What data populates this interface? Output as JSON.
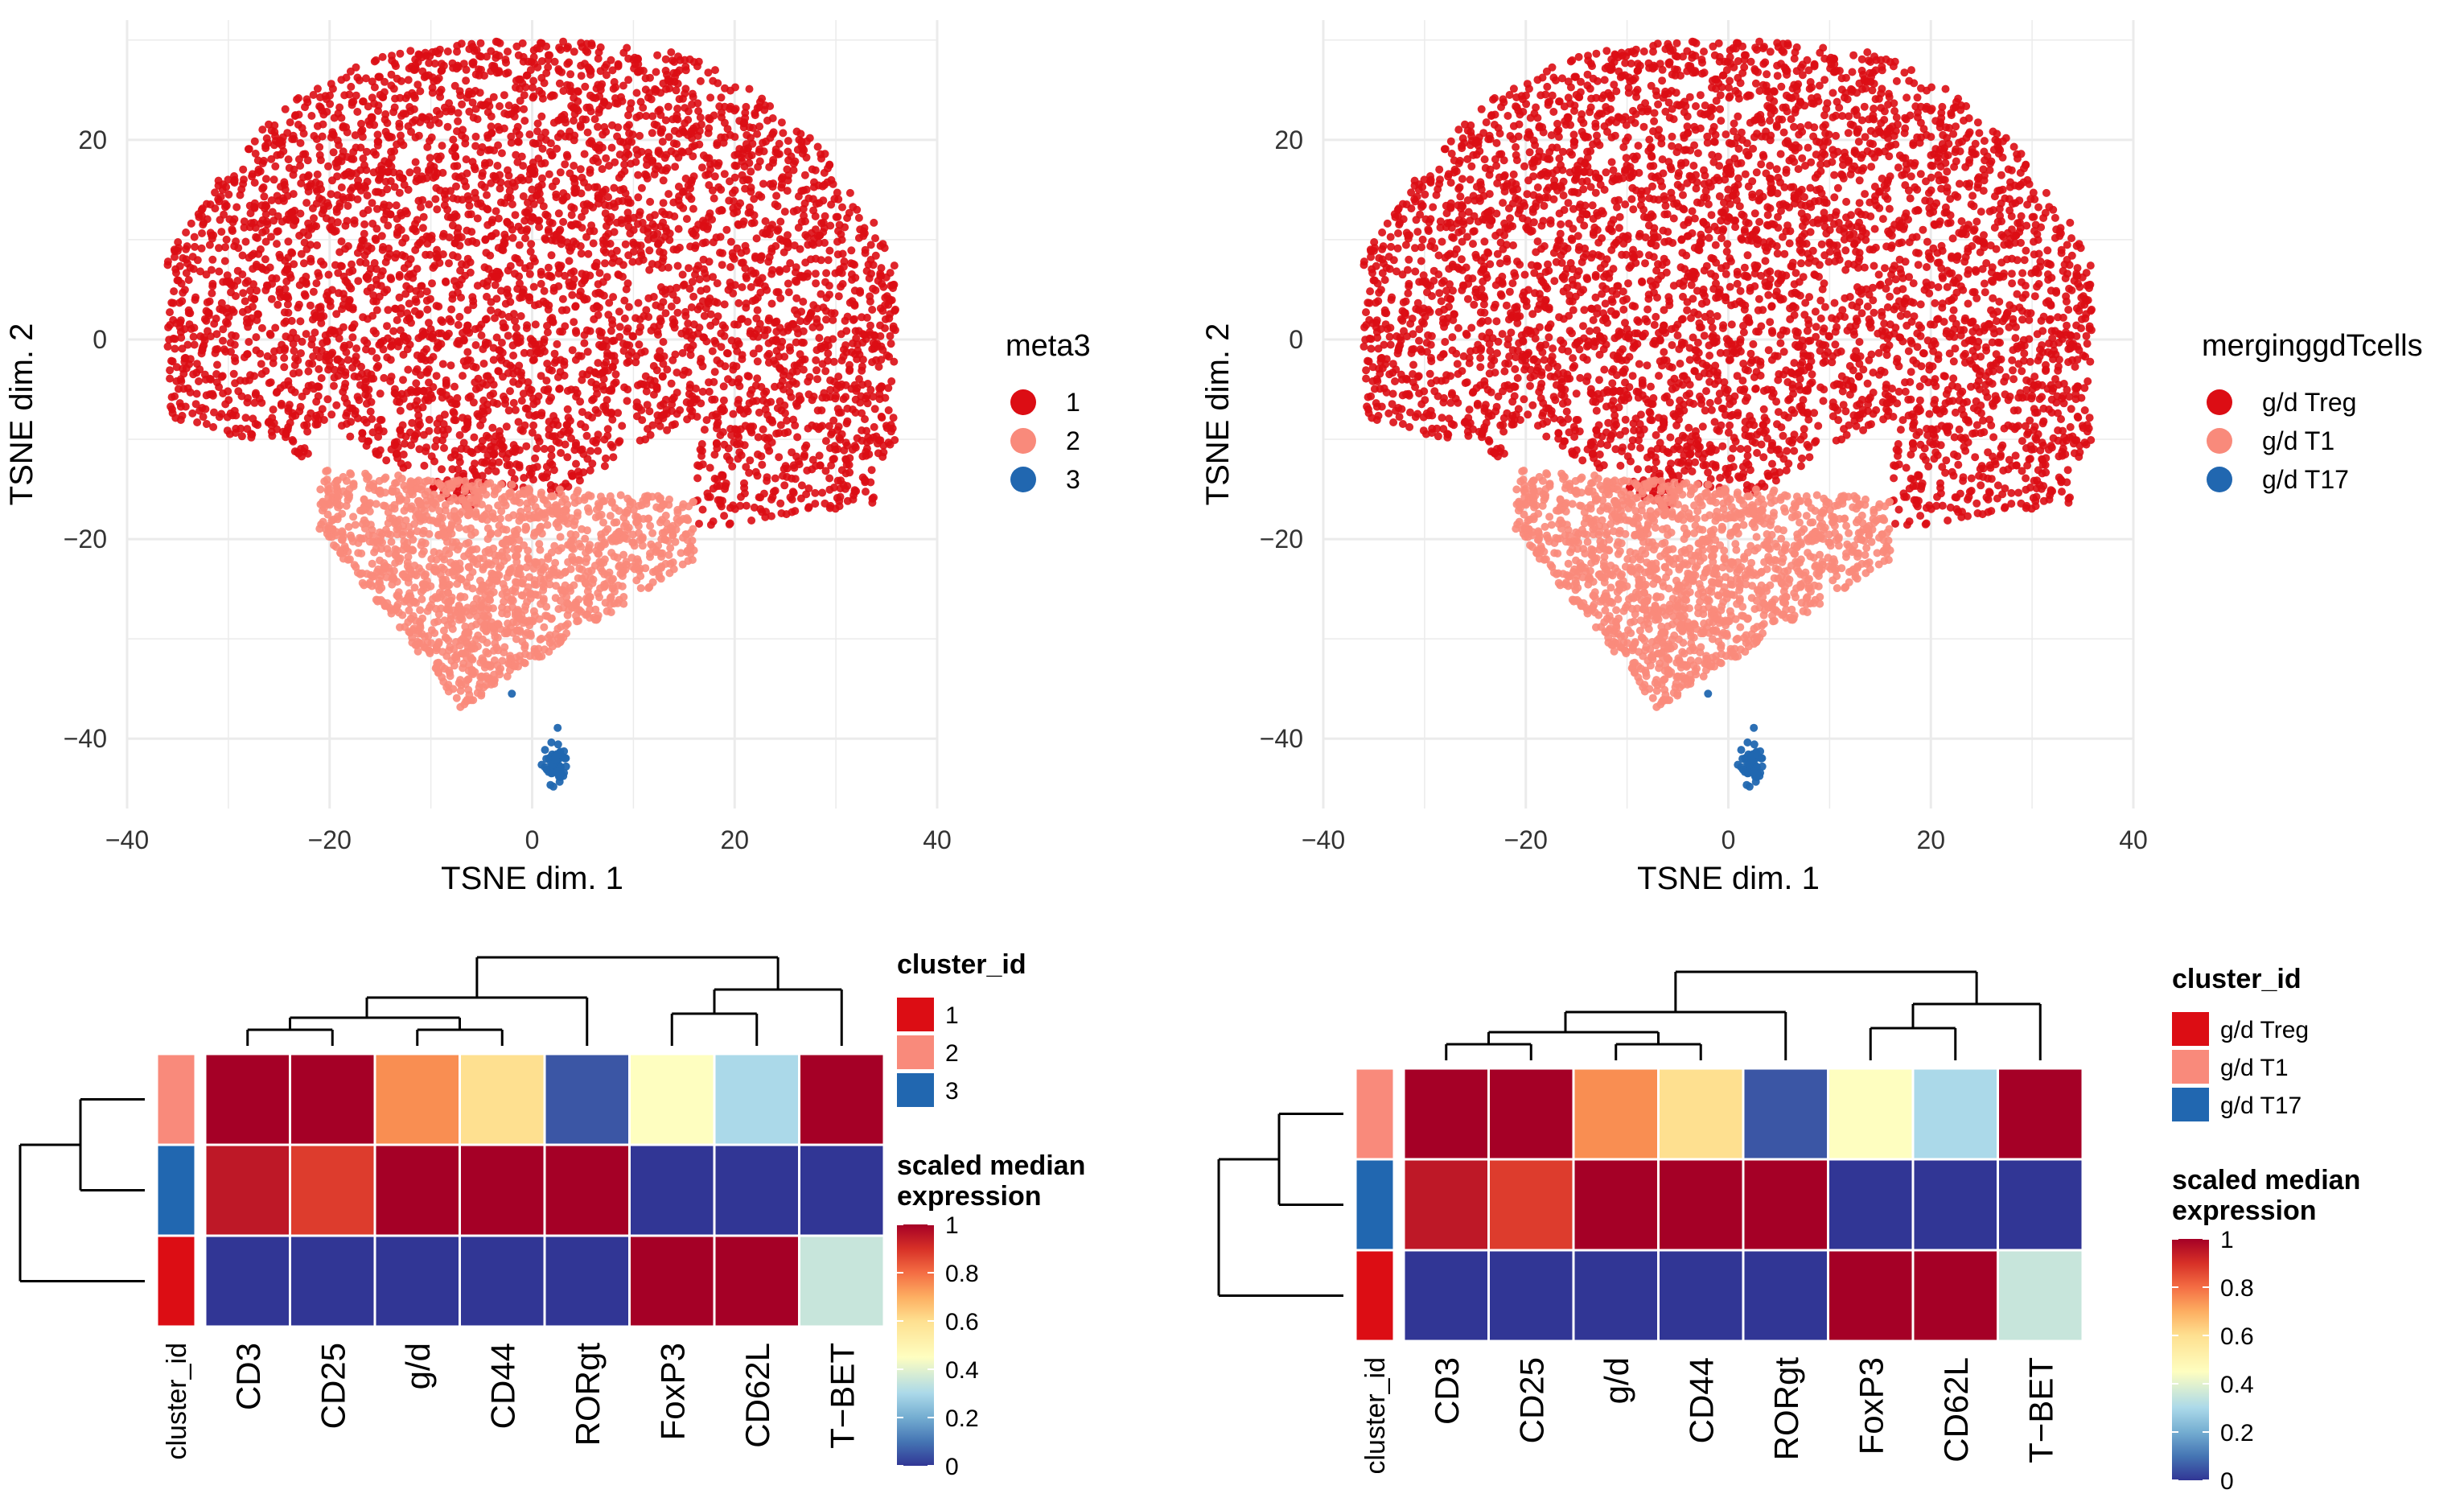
{
  "chart_data": [
    {
      "type": "scatter",
      "panel": "tsne-left",
      "xlabel": "TSNE dim. 1",
      "ylabel": "TSNE dim. 2",
      "xlim": [
        -40,
        40
      ],
      "ylim": [
        -47,
        32
      ],
      "xticks": [
        -40,
        -20,
        0,
        20,
        40
      ],
      "yticks": [
        -40,
        -20,
        0,
        20
      ],
      "xtick_labels": [
        "−40",
        "−20",
        "0",
        "20",
        "40"
      ],
      "ytick_labels": [
        "−40",
        "−20",
        "0",
        "20"
      ],
      "grid": true,
      "legend": {
        "title": "meta3",
        "position": "right",
        "entries": [
          {
            "label": "1",
            "color": "#dc0d14"
          },
          {
            "label": "2",
            "color": "#f98a7b"
          },
          {
            "label": "3",
            "color": "#2167b0"
          }
        ]
      }
    },
    {
      "type": "scatter",
      "panel": "tsne-right",
      "xlabel": "TSNE dim. 1",
      "ylabel": "TSNE dim. 2",
      "xlim": [
        -40,
        40
      ],
      "ylim": [
        -47,
        32
      ],
      "xticks": [
        -40,
        -20,
        0,
        20,
        40
      ],
      "yticks": [
        -40,
        -20,
        0,
        20
      ],
      "xtick_labels": [
        "−40",
        "−20",
        "0",
        "20",
        "40"
      ],
      "ytick_labels": [
        "−40",
        "−20",
        "0",
        "20"
      ],
      "grid": true,
      "legend": {
        "title": "merginggdTcells",
        "position": "right",
        "entries": [
          {
            "label": "g/d Treg",
            "color": "#dc0d14"
          },
          {
            "label": "g/d T1",
            "color": "#f98a7b"
          },
          {
            "label": "g/d T17",
            "color": "#2167b0"
          }
        ]
      }
    },
    {
      "type": "heatmap",
      "panel": "heatmap-left",
      "row_annotation_label": "cluster_id",
      "columns": [
        "CD3",
        "CD25",
        "g/d",
        "CD44",
        "RORgt",
        "FoxP3",
        "CD62L",
        "T−BET"
      ],
      "rows": [
        {
          "cluster": "2",
          "values": [
            1.0,
            1.0,
            0.75,
            0.6,
            0.05,
            0.45,
            0.3,
            1.0
          ]
        },
        {
          "cluster": "3",
          "values": [
            0.95,
            0.88,
            1.0,
            1.0,
            1.0,
            0.0,
            0.0,
            0.0
          ]
        },
        {
          "cluster": "1",
          "values": [
            0.0,
            0.0,
            0.0,
            0.0,
            0.0,
            1.0,
            1.0,
            0.35
          ]
        }
      ],
      "cluster_legend": {
        "title": "cluster_id",
        "entries": [
          {
            "label": "1",
            "color": "#dc0d14"
          },
          {
            "label": "2",
            "color": "#f98a7b"
          },
          {
            "label": "3",
            "color": "#2167b0"
          }
        ]
      },
      "color_legend": {
        "title_line1": "scaled median",
        "title_line2": "expression",
        "ticks": [
          "0",
          "0.2",
          "0.4",
          "0.6",
          "0.8",
          "1"
        ]
      }
    },
    {
      "type": "heatmap",
      "panel": "heatmap-right",
      "row_annotation_label": "cluster_id",
      "columns": [
        "CD3",
        "CD25",
        "g/d",
        "CD44",
        "RORgt",
        "FoxP3",
        "CD62L",
        "T−BET"
      ],
      "rows": [
        {
          "cluster": "g/d T1",
          "values": [
            1.0,
            1.0,
            0.75,
            0.6,
            0.05,
            0.45,
            0.3,
            1.0
          ]
        },
        {
          "cluster": "g/d T17",
          "values": [
            0.95,
            0.88,
            1.0,
            1.0,
            1.0,
            0.0,
            0.0,
            0.0
          ]
        },
        {
          "cluster": "g/d Treg",
          "values": [
            0.0,
            0.0,
            0.0,
            0.0,
            0.0,
            1.0,
            1.0,
            0.35
          ]
        }
      ],
      "cluster_legend": {
        "title": "cluster_id",
        "entries": [
          {
            "label": "g/d Treg",
            "color": "#dc0d14"
          },
          {
            "label": "g/d T1",
            "color": "#f98a7b"
          },
          {
            "label": "g/d T17",
            "color": "#2167b0"
          }
        ]
      },
      "color_legend": {
        "title_line1": "scaled median",
        "title_line2": "expression",
        "ticks": [
          "0",
          "0.2",
          "0.4",
          "0.6",
          "0.8",
          "1"
        ]
      }
    }
  ],
  "colors": {
    "cluster_red": "#dc0d14",
    "cluster_salmon": "#f98a7b",
    "cluster_blue": "#2167b0",
    "grid": "#ebebeb",
    "heat_low": "#313695",
    "heat_high": "#a50026"
  }
}
